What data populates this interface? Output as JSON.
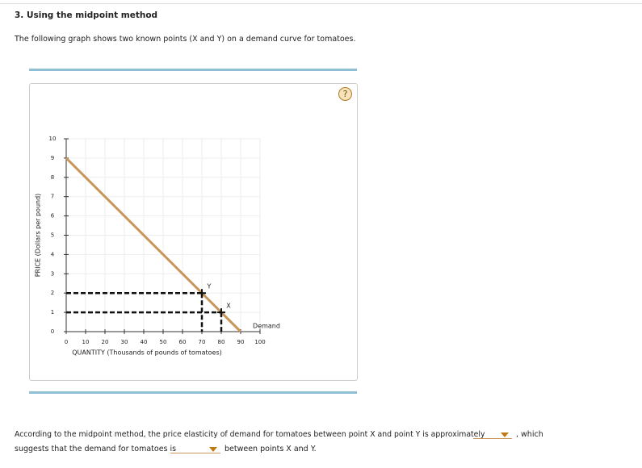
{
  "header": {
    "title": "3. Using the midpoint method",
    "intro": "The following graph shows two known points (X and Y) on a demand curve for tomatoes."
  },
  "help_icon": "?",
  "chart_data": {
    "type": "line",
    "xlabel": "QUANTITY (Thousands of pounds of tomatoes)",
    "ylabel": "PRICE (Dollars per pound)",
    "series": [
      {
        "name": "Demand",
        "color": "#c8965a",
        "x": [
          0,
          90
        ],
        "values": [
          9,
          0
        ]
      }
    ],
    "points": [
      {
        "label": "Y",
        "x": 70,
        "y": 2
      },
      {
        "label": "X",
        "x": 80,
        "y": 1
      }
    ],
    "xlim": [
      0,
      100
    ],
    "ylim": [
      0,
      10
    ],
    "xticks": [
      0,
      10,
      20,
      30,
      40,
      50,
      60,
      70,
      80,
      90,
      100
    ],
    "yticks": [
      0,
      1,
      2,
      3,
      4,
      5,
      6,
      7,
      8,
      9,
      10
    ],
    "grid": true
  },
  "question": {
    "part1": "According to the midpoint method, the price elasticity of demand for tomatoes between point X and point Y is approximately",
    "part2": ", which",
    "part3": "suggests that the demand for tomatoes is",
    "part4": "between points X and Y."
  }
}
